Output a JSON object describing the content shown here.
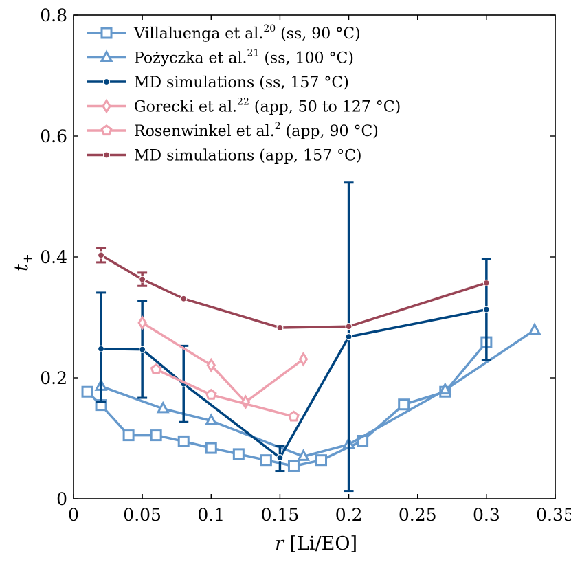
{
  "chart_data": {
    "type": "line",
    "xlabel": "r [Li/EO]",
    "ylabel": "t+",
    "xlim": [
      0,
      0.35
    ],
    "ylim": [
      0,
      0.8
    ],
    "xticks": [
      0,
      0.05,
      0.1,
      0.15,
      0.2,
      0.25,
      0.3,
      0.35
    ],
    "xtick_labels": [
      "0",
      "0.05",
      "0.1",
      "0.15",
      "0.2",
      "0.25",
      "0.3",
      "0.35"
    ],
    "yticks": [
      0,
      0.2,
      0.4,
      0.6,
      0.8
    ],
    "ytick_labels": [
      "0",
      "0.2",
      "0.4",
      "0.6",
      "0.8"
    ],
    "grid": false,
    "legend_position": "top-left",
    "series": [
      {
        "name": "Villaluenga et al.",
        "ref": "20",
        "cond": " (ss, 90 °C)",
        "color": "#6699cc",
        "marker": "square",
        "dashed": false,
        "x": [
          0.01,
          0.02,
          0.04,
          0.06,
          0.08,
          0.1,
          0.12,
          0.14,
          0.16,
          0.18,
          0.21,
          0.24,
          0.27,
          0.3
        ],
        "y": [
          0.177,
          0.155,
          0.105,
          0.105,
          0.095,
          0.084,
          0.074,
          0.064,
          0.054,
          0.064,
          0.096,
          0.156,
          0.177,
          0.259
        ]
      },
      {
        "name": "Pożyczka et al.",
        "ref": "21",
        "cond": " (ss, 100 °C)",
        "color": "#6699cc",
        "marker": "triangle",
        "dashed": false,
        "x": [
          0.02,
          0.065,
          0.1,
          0.167,
          0.2,
          0.27,
          0.335
        ],
        "y": [
          0.186,
          0.149,
          0.129,
          0.07,
          0.09,
          0.18,
          0.279
        ]
      },
      {
        "name": "MD simulations",
        "ref": "",
        "cond": " (ss, 157 °C)",
        "color": "#00447f",
        "marker": "dot",
        "dashed": false,
        "x": [
          0.02,
          0.05,
          0.08,
          0.15,
          0.2,
          0.3
        ],
        "y": [
          0.248,
          0.247,
          0.19,
          0.068,
          0.268,
          0.313
        ],
        "err_low": [
          0.088,
          0.08,
          0.063,
          0.022,
          0.255,
          0.084
        ],
        "err_high": [
          0.093,
          0.08,
          0.063,
          0.02,
          0.255,
          0.084
        ]
      },
      {
        "name": "Gorecki et al.",
        "ref": "22",
        "cond": " (app, 50 to 127 °C)",
        "color": "#eea0ae",
        "marker": "diamond",
        "dashed": false,
        "x": [
          0.05,
          0.1,
          0.125,
          0.167
        ],
        "y": [
          0.291,
          0.221,
          0.16,
          0.231
        ]
      },
      {
        "name": "Rosenwinkel et al.",
        "ref": "2",
        "cond": " (app, 90 °C)",
        "color": "#eea0ae",
        "marker": "pentagon",
        "dashed": false,
        "x": [
          0.06,
          0.1,
          0.16
        ],
        "y": [
          0.214,
          0.172,
          0.136
        ]
      },
      {
        "name": "MD simulations",
        "ref": "",
        "cond": " (app, 157 °C)",
        "color": "#994455",
        "marker": "dot",
        "dashed": false,
        "x": [
          0.02,
          0.05,
          0.08,
          0.15,
          0.2,
          0.3
        ],
        "y": [
          0.403,
          0.363,
          0.331,
          0.283,
          0.285,
          0.357
        ],
        "err_low": [
          0.012,
          0.011,
          0,
          0,
          0,
          0
        ],
        "err_high": [
          0.012,
          0.011,
          0,
          0,
          0,
          0
        ]
      }
    ]
  }
}
